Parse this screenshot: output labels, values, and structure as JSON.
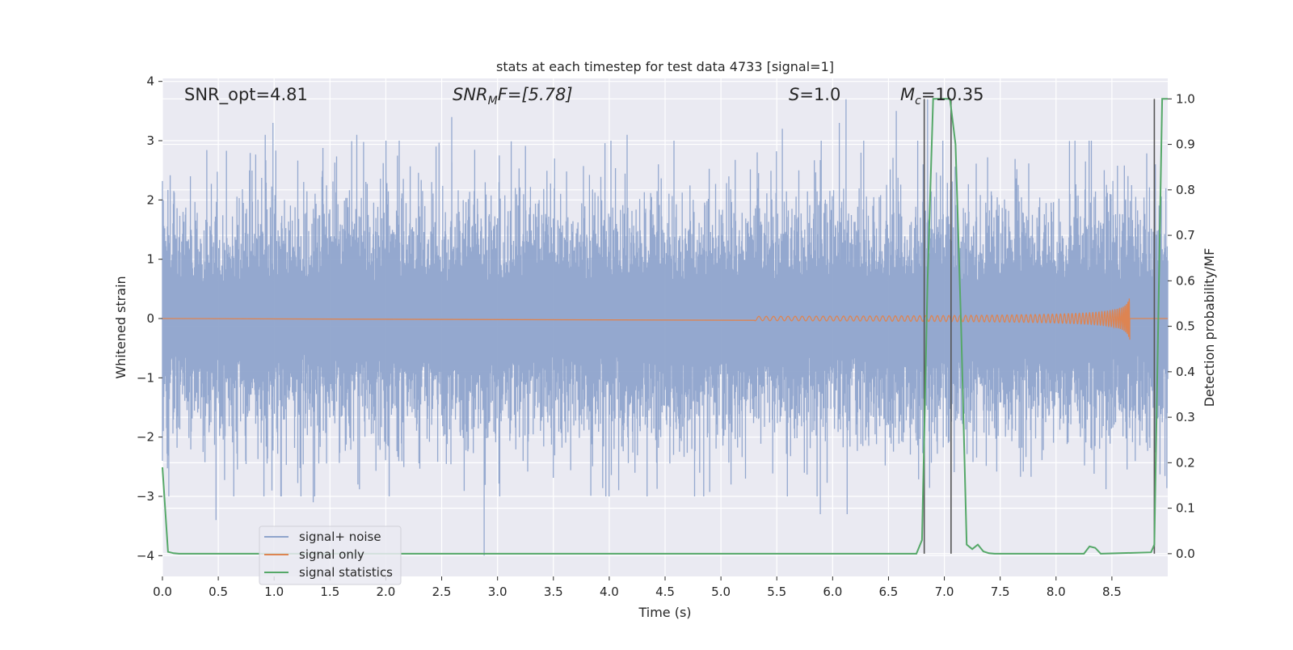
{
  "chart_data": {
    "type": "line",
    "title": "stats at each timestep for test data 4733 [signal=1]",
    "xlabel": "Time (s)",
    "ylabel_left": "Whitened strain",
    "ylabel_right": "Detection probability/MF",
    "xlim": [
      0.0,
      9.0
    ],
    "ylim_left": [
      -4.35,
      4.05
    ],
    "ylim_right": [
      -0.05,
      1.045
    ],
    "x_ticks": [
      "0.0",
      "0.5",
      "1.0",
      "1.5",
      "2.0",
      "2.5",
      "3.0",
      "3.5",
      "4.0",
      "4.5",
      "5.0",
      "5.5",
      "6.0",
      "6.5",
      "7.0",
      "7.5",
      "8.0",
      "8.5"
    ],
    "y_left_ticks": [
      "4",
      "3",
      "2",
      "1",
      "0",
      "−1",
      "−2",
      "−3",
      "−4"
    ],
    "y_right_ticks": [
      "1.0",
      "0.9",
      "0.8",
      "0.7",
      "0.6",
      "0.5",
      "0.4",
      "0.3",
      "0.2",
      "0.1",
      "0.0"
    ],
    "grid": true,
    "legend_position": "lower-left",
    "annotations": {
      "snr_opt": "SNR_opt=4.81",
      "snr_mf_main": "SNR",
      "snr_mf_sub": "M",
      "snr_mf_rest": "F=[5.78]",
      "s_main": "S",
      "s_rest": "=1.0",
      "mc_main": "M",
      "mc_sub": "c",
      "mc_rest": "=10.35"
    },
    "vertical_lines_x": [
      6.82,
      7.06,
      8.88
    ],
    "series": [
      {
        "name": "signal+ noise",
        "color": "#8fa4cc",
        "kind": "noise",
        "envelope_typical": 1.6,
        "peaks": [
          [
            0.0,
            -2.4
          ],
          [
            0.25,
            2.4
          ],
          [
            0.48,
            -3.4
          ],
          [
            0.78,
            2.5
          ],
          [
            0.92,
            3.1
          ],
          [
            0.99,
            3.3
          ],
          [
            0.98,
            -2.9
          ],
          [
            1.35,
            -3.1
          ],
          [
            1.74,
            3.1
          ],
          [
            1.75,
            -2.8
          ],
          [
            2.45,
            2.9
          ],
          [
            2.59,
            3.4
          ],
          [
            2.88,
            -4.0
          ],
          [
            3.02,
            -3.0
          ],
          [
            3.51,
            2.7
          ],
          [
            4.16,
            3.1
          ],
          [
            4.23,
            -2.6
          ],
          [
            4.44,
            2.6
          ],
          [
            4.81,
            -2.6
          ],
          [
            5.09,
            -2.8
          ],
          [
            5.22,
            -2.7
          ],
          [
            5.55,
            3.2
          ],
          [
            5.89,
            -3.3
          ],
          [
            6.06,
            3.3
          ],
          [
            6.12,
            3.7
          ],
          [
            6.13,
            -3.3
          ],
          [
            6.57,
            3.5
          ],
          [
            6.85,
            3.7
          ],
          [
            7.06,
            3.3
          ]
        ]
      },
      {
        "name": "signal only",
        "color": "#dd8452",
        "kind": "chirp",
        "t_merge": 8.66,
        "max_amplitude": 0.75
      },
      {
        "name": "signal statistics",
        "color": "#55a868",
        "axis": "right",
        "x": [
          0.0,
          0.05,
          0.1,
          0.15,
          6.75,
          6.8,
          6.85,
          6.9,
          7.0,
          7.05,
          7.1,
          7.15,
          7.2,
          7.25,
          7.3,
          7.35,
          7.4,
          7.45,
          8.25,
          8.3,
          8.35,
          8.4,
          8.85,
          8.88,
          8.95,
          9.0
        ],
        "y": [
          0.19,
          0.004,
          0.001,
          0.0,
          0.0,
          0.03,
          0.6,
          1.0,
          1.0,
          1.0,
          0.9,
          0.5,
          0.02,
          0.01,
          0.02,
          0.005,
          0.001,
          0.0,
          0.0,
          0.016,
          0.013,
          0.0,
          0.003,
          0.02,
          1.0,
          1.0
        ]
      }
    ]
  }
}
